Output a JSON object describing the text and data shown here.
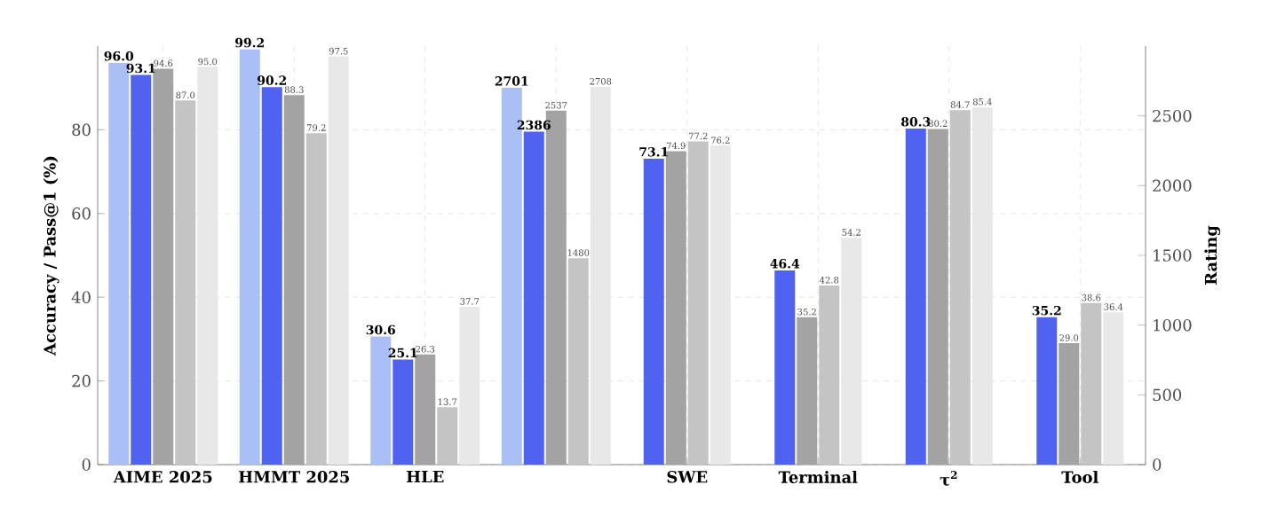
{
  "chart_data": {
    "type": "bar",
    "ylabel": "Accuracy / Pass@1 (%)",
    "y2label": "Rating",
    "categories": [
      "AIME 2025",
      "HMMT 2025",
      "HLE",
      null,
      "SWE",
      "Terminal",
      "τ$^{2}$",
      "Tool"
    ],
    "series": [
      {
        "color": "#a9bff5",
        "values": [
          96.0,
          99.2,
          30.6,
          null,
          null,
          null,
          null,
          null
        ],
        "value_labels": [
          "96.0",
          "99.2",
          "30.6",
          null,
          null,
          null,
          null,
          null
        ]
      },
      {
        "color": "#4f63f0",
        "values": [
          93.1,
          90.2,
          25.1,
          null,
          73.1,
          46.4,
          80.3,
          35.2
        ],
        "value_labels": [
          "93.1",
          "90.2",
          "25.1",
          null,
          "73.1",
          "46.4",
          "80.3",
          "35.2"
        ]
      },
      {
        "color": "#a3a3a3",
        "values": [
          94.6,
          88.3,
          26.3,
          null,
          74.9,
          35.2,
          80.2,
          29.0
        ],
        "value_labels": [
          "94.6",
          "88.3",
          "26.3",
          null,
          "74.9",
          "35.2",
          "80.2",
          "29.0"
        ]
      },
      {
        "color": "#c4c4c4",
        "values": [
          87.0,
          79.2,
          13.7,
          null,
          77.2,
          42.8,
          84.7,
          38.6
        ],
        "value_labels": [
          "87.0",
          "79.2",
          "13.7",
          null,
          "77.2",
          "42.8",
          "84.7",
          "38.6"
        ]
      },
      {
        "color": "#e8e8e8",
        "values": [
          95.0,
          97.5,
          37.7,
          null,
          76.2,
          54.2,
          85.4,
          36.4
        ],
        "value_labels": [
          "95.0",
          "97.5",
          "37.7",
          null,
          "76.2",
          "54.2",
          "85.4",
          "36.4"
        ]
      },
      {
        "color": "#a9bff5",
        "axis": "y2",
        "values": [
          null,
          null,
          null,
          2701,
          null,
          null,
          null,
          null
        ],
        "value_labels": [
          null,
          null,
          null,
          "2701",
          null,
          null,
          null,
          null
        ]
      },
      {
        "color": "#4f63f0",
        "axis": "y2",
        "values": [
          null,
          null,
          null,
          2386,
          null,
          null,
          null,
          null
        ],
        "value_labels": [
          null,
          null,
          null,
          "2386",
          null,
          null,
          null,
          null
        ]
      },
      {
        "color": "#a3a3a3",
        "axis": "y2",
        "values": [
          null,
          null,
          null,
          2537,
          null,
          null,
          null,
          null
        ],
        "value_labels": [
          null,
          null,
          null,
          "2537",
          null,
          null,
          null,
          null
        ]
      },
      {
        "color": "#c4c4c4",
        "axis": "y2",
        "values": [
          null,
          null,
          null,
          1480,
          null,
          null,
          null,
          null
        ],
        "value_labels": [
          null,
          null,
          null,
          "1480",
          null,
          null,
          null,
          null
        ]
      },
      {
        "color": "#e8e8e8",
        "axis": "y2",
        "values": [
          null,
          null,
          null,
          2708,
          null,
          null,
          null,
          null
        ],
        "value_labels": [
          null,
          null,
          null,
          "2708",
          null,
          null,
          null,
          null
        ]
      }
    ],
    "ylim": [
      0,
      100
    ],
    "yticks": [
      0,
      20,
      40,
      60,
      80
    ],
    "y2lim": [
      0,
      3000
    ],
    "y2ticks": [
      0,
      500,
      1000,
      1500,
      2000,
      2500
    ],
    "grid": true
  }
}
